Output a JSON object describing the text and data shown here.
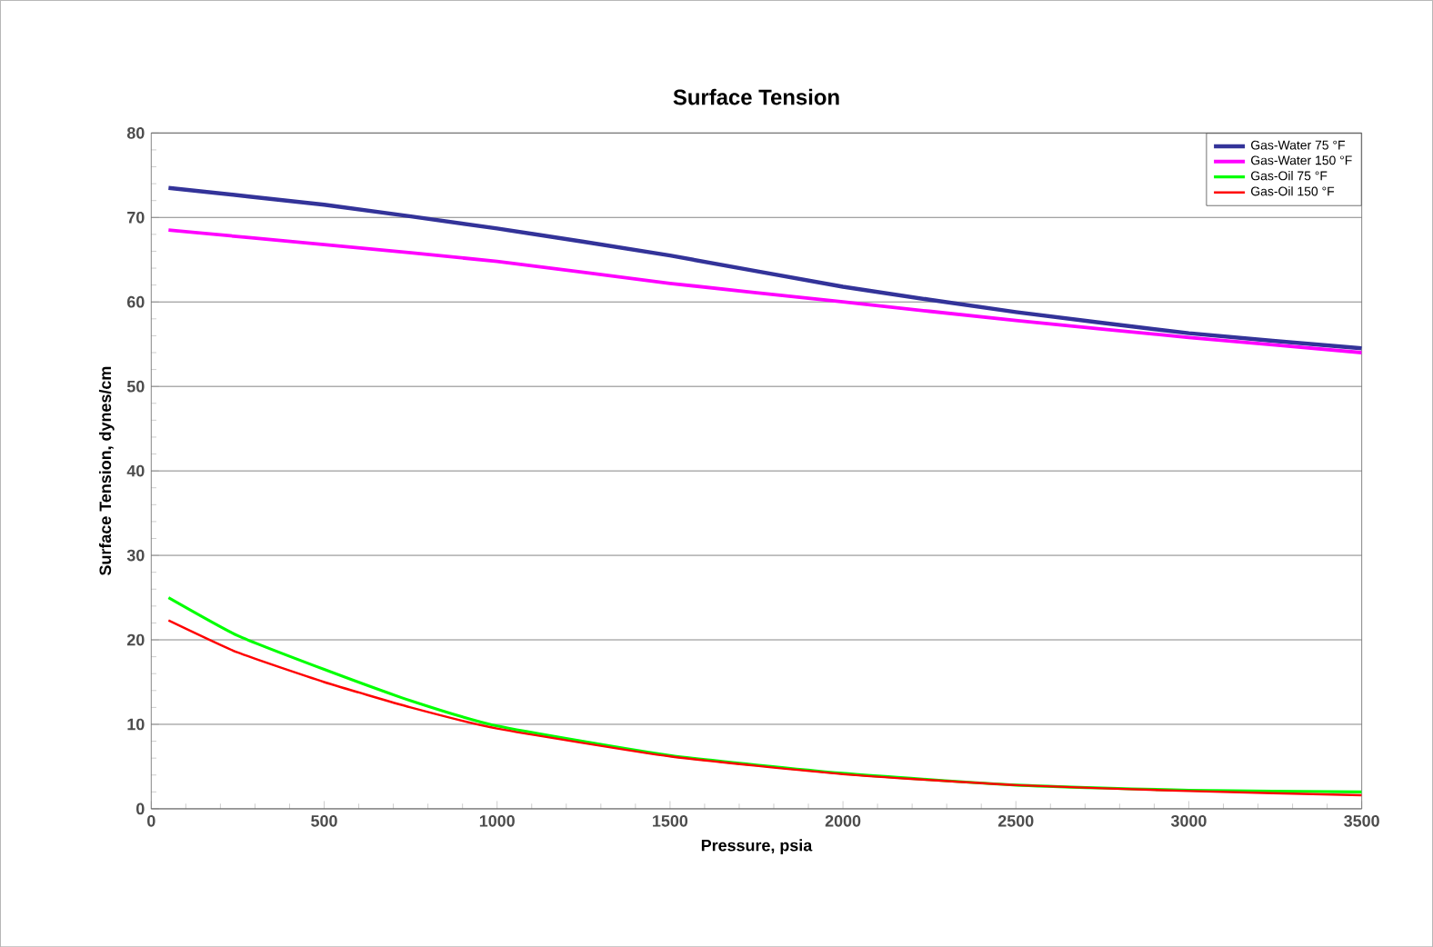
{
  "chart_data": {
    "type": "line",
    "title": "Surface Tension",
    "xlabel": "Pressure, psia",
    "ylabel": "Surface Tension, dynes/cm",
    "xlim": [
      0,
      3500
    ],
    "xticks": [
      0,
      500,
      1000,
      1500,
      2000,
      2500,
      3000,
      3500
    ],
    "ylim": [
      0,
      80
    ],
    "yticks": [
      0,
      10,
      20,
      30,
      40,
      50,
      60,
      70,
      80
    ],
    "grid": "y",
    "legend": "top right",
    "marker": "none",
    "line_style": "solid",
    "series": [
      {
        "name": "Gas-Water 75 °F",
        "color": "#333399",
        "x": [
          50,
          500,
          1000,
          1500,
          2000,
          2500,
          3000,
          3500
        ],
        "values": [
          73.5,
          71.5,
          68.7,
          65.5,
          61.8,
          58.8,
          56.3,
          54.5
        ]
      },
      {
        "name": "Gas-Water 150 °F",
        "color": "#ff00ff",
        "x": [
          50,
          500,
          1000,
          1500,
          2000,
          2500,
          3000,
          3500
        ],
        "values": [
          68.5,
          66.8,
          64.8,
          62.2,
          60.0,
          57.8,
          55.8,
          54.0
        ]
      },
      {
        "name": "Gas-Oil 75 °F",
        "color": "#00ff00",
        "x": [
          50,
          250,
          500,
          750,
          1000,
          1500,
          2000,
          2500,
          3000,
          3500
        ],
        "values": [
          25.0,
          20.5,
          16.5,
          12.8,
          9.8,
          6.3,
          4.2,
          2.8,
          2.2,
          2.0
        ]
      },
      {
        "name": "Gas-Oil 150 °F",
        "color": "#ff0000",
        "x": [
          50,
          250,
          500,
          750,
          1000,
          1500,
          2000,
          2500,
          3000,
          3500
        ],
        "values": [
          22.3,
          18.5,
          15.0,
          12.0,
          9.5,
          6.2,
          4.1,
          2.8,
          2.1,
          1.6
        ]
      }
    ]
  }
}
